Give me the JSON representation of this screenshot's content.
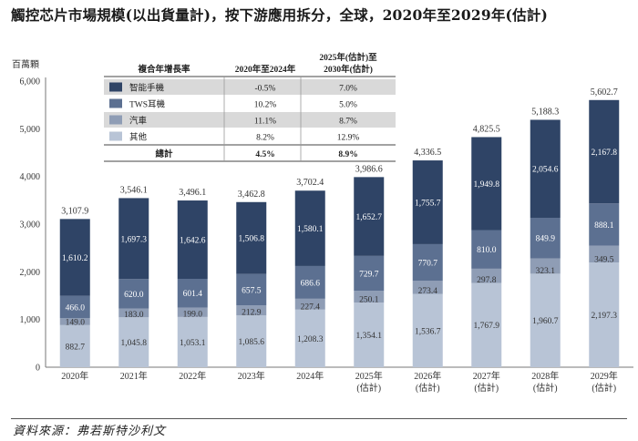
{
  "title": "觸控芯片市場規模(以出貨量計)，按下游應用拆分，全球，2020年至2029年(估計)",
  "source": "資料來源：弗若斯特沙利文",
  "chart_data": {
    "type": "bar",
    "stacked": true,
    "ylabel": "百萬顆",
    "ylim": [
      0,
      6000
    ],
    "yticks": [
      "0",
      "1,000",
      "2,000",
      "3,000",
      "4,000",
      "5,000",
      "6,000"
    ],
    "categories": [
      "2020年",
      "2021年",
      "2022年",
      "2023年",
      "2024年",
      "2025年\n(估計)",
      "2026年\n(估計)",
      "2027年\n(估計)",
      "2028年\n(估計)",
      "2029年\n(估計)"
    ],
    "series": [
      {
        "name": "其他",
        "color": "#b8c4d6",
        "values": [
          882.7,
          1045.8,
          1053.1,
          1085.6,
          1208.3,
          1354.1,
          1536.7,
          1767.9,
          1960.7,
          2197.3
        ],
        "labels": [
          "882.7",
          "1,045.8",
          "1,053.1",
          "1,085.6",
          "1,208.3",
          "1,354.1",
          "1,536.7",
          "1,767.9",
          "1,960.7",
          "2,197.3"
        ]
      },
      {
        "name": "汽車",
        "color": "#8f9db5",
        "values": [
          149.0,
          183.0,
          199.0,
          212.9,
          227.4,
          250.1,
          273.4,
          297.8,
          323.1,
          349.5
        ],
        "labels": [
          "149.0",
          "183.0",
          "199.0",
          "212.9",
          "227.4",
          "250.1",
          "273.4",
          "297.8",
          "323.1",
          "349.5"
        ]
      },
      {
        "name": "TWS耳機",
        "color": "#5c7091",
        "values": [
          466.0,
          620.0,
          601.4,
          657.5,
          686.6,
          729.7,
          770.7,
          810.0,
          849.9,
          888.1
        ],
        "labels": [
          "466.0",
          "620.0",
          "601.4",
          "657.5",
          "686.6",
          "729.7",
          "770.7",
          "810.0",
          "849.9",
          "888.1"
        ]
      },
      {
        "name": "智能手機",
        "color": "#2f4466",
        "values": [
          1610.2,
          1697.3,
          1642.6,
          1506.8,
          1580.1,
          1652.7,
          1755.7,
          1949.8,
          2054.6,
          2167.8
        ],
        "labels": [
          "1,610.2",
          "1,697.3",
          "1,642.6",
          "1,506.8",
          "1,580.1",
          "1,652.7",
          "1,755.7",
          "1,949.8",
          "2,054.6",
          "2,167.8"
        ]
      }
    ],
    "totals": [
      "3,107.9",
      "3,546.1",
      "3,496.1",
      "3,462.8",
      "3,702.4",
      "3,986.6",
      "4,336.5",
      "4,825.5",
      "5,188.3",
      "5,602.7"
    ],
    "cagr_table": {
      "header": [
        "複合年增長率",
        "2020年至2024年",
        "2025年(估計)至\n2030年(估計)"
      ],
      "rows": [
        {
          "name": "智能手機",
          "color": "#2f4466",
          "a": "-0.5%",
          "b": "7.0%"
        },
        {
          "name": "TWS耳機",
          "color": "#5c7091",
          "a": "10.2%",
          "b": "5.0%"
        },
        {
          "name": "汽車",
          "color": "#8f9db5",
          "a": "11.1%",
          "b": "8.7%"
        },
        {
          "name": "其他",
          "color": "#b8c4d6",
          "a": "8.2%",
          "b": "12.9%"
        }
      ],
      "total": {
        "name": "總計",
        "a": "4.5%",
        "b": "8.9%"
      }
    }
  }
}
